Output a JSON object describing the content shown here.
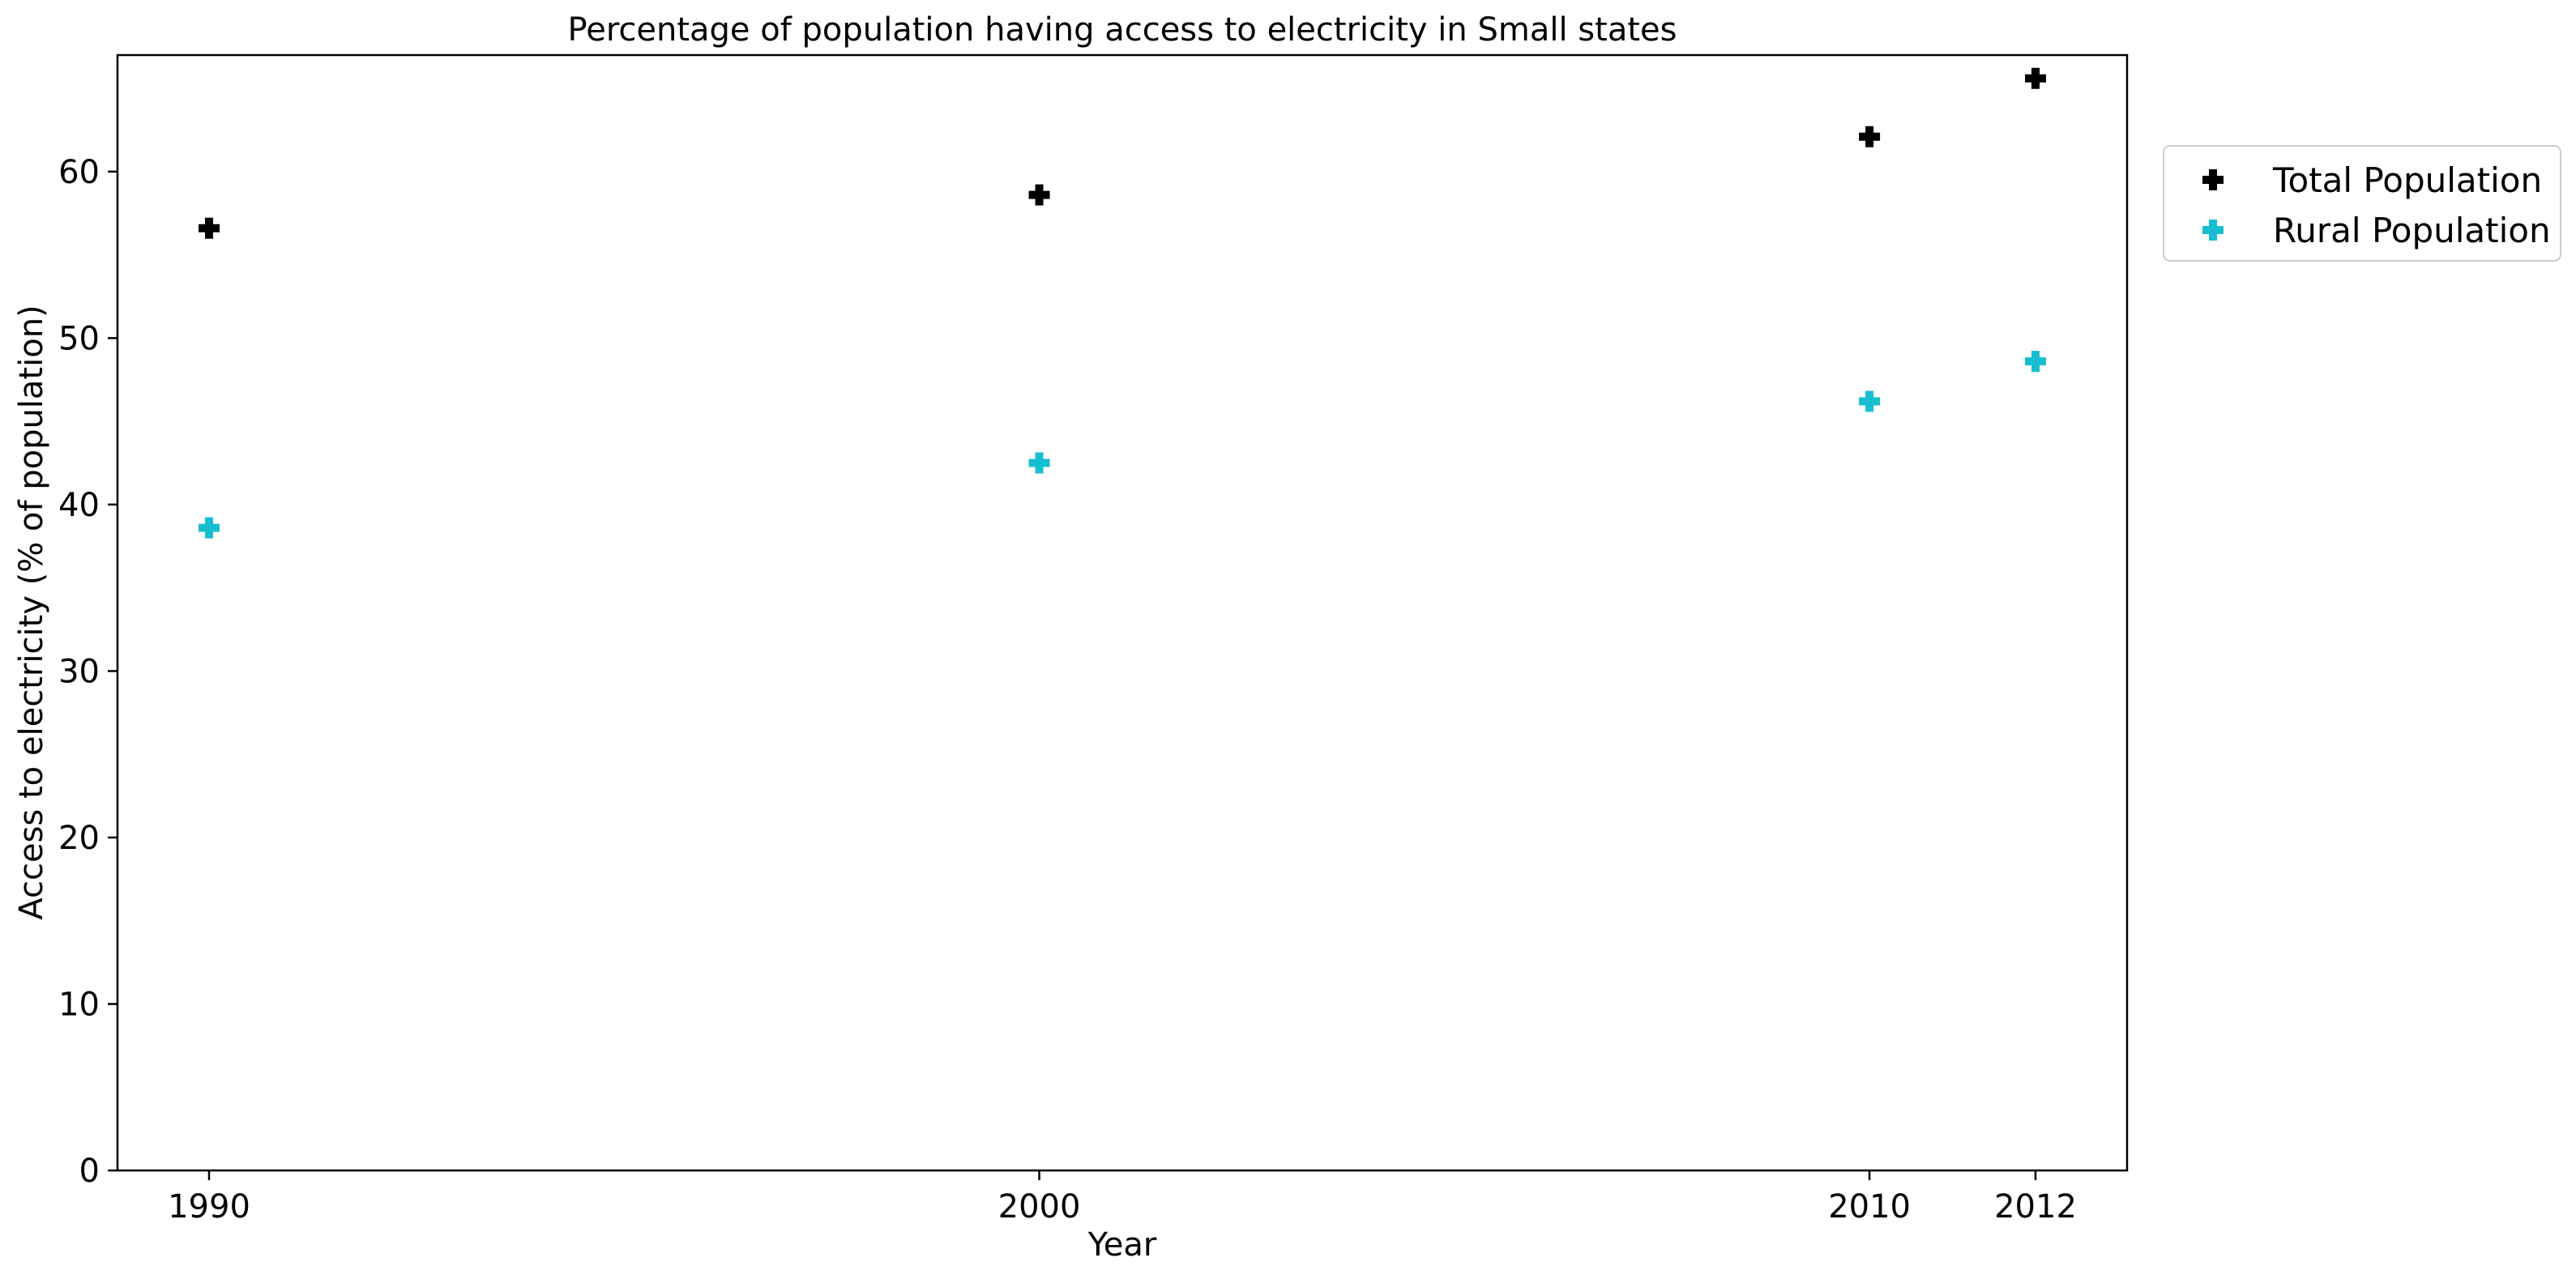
{
  "chart_data": {
    "type": "scatter",
    "title": "Percentage of population having access to electricity in Small states",
    "xlabel": "Year",
    "ylabel": "Access to electricity (% of population)",
    "categories": [
      "1990",
      "2000",
      "2010",
      "2012"
    ],
    "ylim": [
      0,
      67
    ],
    "yticks": [
      0,
      10,
      20,
      30,
      40,
      50,
      60
    ],
    "grid": false,
    "legend_position": "outside-top-right",
    "marker": "plus-filled",
    "series": [
      {
        "name": "Total Population",
        "color": "#000000",
        "values": [
          56.6,
          58.6,
          62.1,
          65.6
        ]
      },
      {
        "name": "Rural Population",
        "color": "#17becf",
        "values": [
          38.6,
          42.5,
          46.2,
          48.6
        ]
      }
    ]
  }
}
